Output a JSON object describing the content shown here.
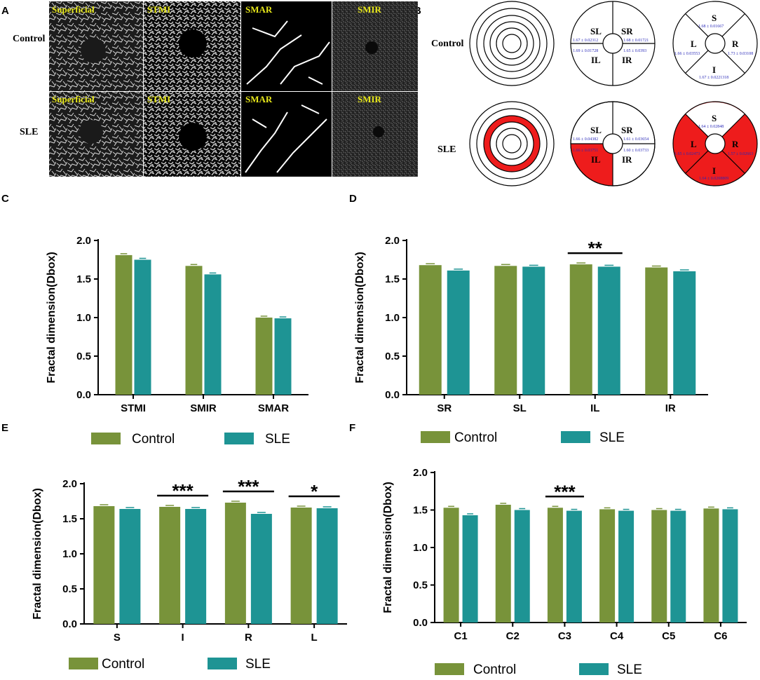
{
  "panel_labels": {
    "a": "A",
    "b": "B",
    "c": "C",
    "d": "D",
    "e": "E",
    "f": "F"
  },
  "images": {
    "groups": [
      "Control",
      "SLE"
    ],
    "columns": [
      "Superficial",
      "STMI",
      "SMAR",
      "SMIR"
    ]
  },
  "diagrams": {
    "groups": [
      "Control",
      "SLE"
    ],
    "quad_labels": [
      "SL",
      "SR",
      "IL",
      "IR"
    ],
    "dir_labels": [
      "S",
      "L",
      "R",
      "I"
    ],
    "control_quad": [
      "1.67 ± 0.02312",
      "1.68 ± 0.01721",
      "1.69 ± 0.01728",
      "1.65 ± 0.0393"
    ],
    "sle_quad": [
      "1.66 ± 0.04382",
      "1.61 ± 0.03654",
      "1.66 ± 0.03751",
      "1.60 ± 0.03733"
    ],
    "control_dir": [
      "1.68 ± 0.01667",
      "1.66 ± 0.03553",
      "1.73 ± 0.03108",
      "1.67 ± 0.0221318"
    ],
    "sle_dir": [
      "1.64 ± 0.02848",
      "1.65 ± 0.02473",
      "1.57 ± 0.02663",
      "1.64 ± 0.0208809"
    ],
    "highlight_color": "#ee1c1c"
  },
  "legend": {
    "control": "Control",
    "sle": "SLE"
  },
  "colors": {
    "control": "#78933a",
    "sle": "#1e9494"
  },
  "chart_data": [
    {
      "id": "C",
      "type": "bar",
      "title": "",
      "xlabel": "",
      "ylabel": "Fractal dimension(Dbox)",
      "ylim": [
        0,
        2.0
      ],
      "yticks": [
        "0.0",
        "0.5",
        "1.0",
        "1.5",
        "2.0"
      ],
      "categories": [
        "STMI",
        "SMIR",
        "SMAR"
      ],
      "series": [
        {
          "name": "Control",
          "values": [
            1.81,
            1.67,
            1.0
          ]
        },
        {
          "name": "SLE",
          "values": [
            1.75,
            1.56,
            0.99
          ]
        }
      ],
      "significance": []
    },
    {
      "id": "D",
      "type": "bar",
      "title": "",
      "xlabel": "",
      "ylabel": "Fractal dimension(Dbox)",
      "ylim": [
        0,
        2.0
      ],
      "yticks": [
        "0.0",
        "0.5",
        "1.0",
        "1.5",
        "2.0"
      ],
      "categories": [
        "SR",
        "SL",
        "IL",
        "IR"
      ],
      "series": [
        {
          "name": "Control",
          "values": [
            1.68,
            1.67,
            1.69,
            1.65
          ]
        },
        {
          "name": "SLE",
          "values": [
            1.61,
            1.66,
            1.66,
            1.6
          ]
        }
      ],
      "significance": [
        {
          "category": "IL",
          "label": "**"
        }
      ]
    },
    {
      "id": "E",
      "type": "bar",
      "title": "",
      "xlabel": "",
      "ylabel": "Fractal dimension(Dbox)",
      "ylim": [
        0,
        2.0
      ],
      "yticks": [
        "0.0",
        "0.5",
        "1.0",
        "1.5",
        "2.0"
      ],
      "categories": [
        "S",
        "I",
        "R",
        "L"
      ],
      "series": [
        {
          "name": "Control",
          "values": [
            1.68,
            1.67,
            1.73,
            1.66
          ]
        },
        {
          "name": "SLE",
          "values": [
            1.64,
            1.64,
            1.57,
            1.65
          ]
        }
      ],
      "significance": [
        {
          "category": "I",
          "label": "***"
        },
        {
          "category": "R",
          "label": "***"
        },
        {
          "category": "L",
          "label": "*"
        }
      ]
    },
    {
      "id": "F",
      "type": "bar",
      "title": "",
      "xlabel": "",
      "ylabel": "Fractal dimension(Dbox)",
      "ylim": [
        0,
        2.0
      ],
      "yticks": [
        "0.0",
        "0.5",
        "1.0",
        "1.5",
        "2.0"
      ],
      "categories": [
        "C1",
        "C2",
        "C3",
        "C4",
        "C5",
        "C6"
      ],
      "series": [
        {
          "name": "Control",
          "values": [
            1.53,
            1.57,
            1.53,
            1.51,
            1.5,
            1.52
          ]
        },
        {
          "name": "SLE",
          "values": [
            1.43,
            1.5,
            1.49,
            1.49,
            1.49,
            1.51
          ]
        }
      ],
      "significance": [
        {
          "category": "C3",
          "label": "***"
        }
      ]
    }
  ]
}
